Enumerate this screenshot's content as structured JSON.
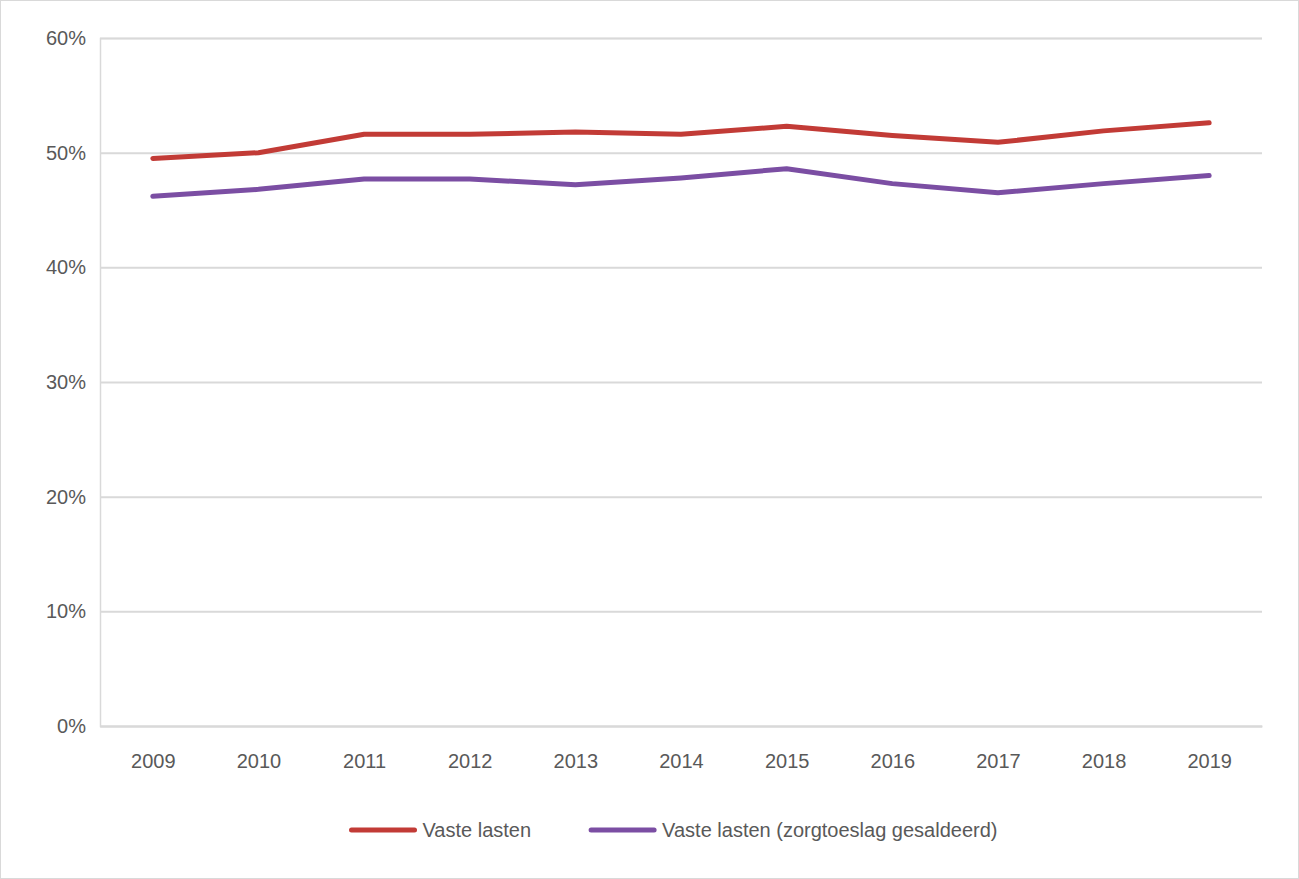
{
  "chart_data": {
    "type": "line",
    "categories": [
      "2009",
      "2010",
      "2011",
      "2012",
      "2013",
      "2014",
      "2015",
      "2016",
      "2017",
      "2018",
      "2019"
    ],
    "series": [
      {
        "name": "Vaste lasten",
        "color": "#c23b36",
        "values": [
          49.5,
          50.0,
          51.6,
          51.6,
          51.8,
          51.6,
          52.3,
          51.5,
          50.9,
          51.9,
          52.6
        ]
      },
      {
        "name": "Vaste lasten (zorgtoeslag gesaldeerd)",
        "color": "#7b4ea3",
        "values": [
          46.2,
          46.8,
          47.7,
          47.7,
          47.2,
          47.8,
          48.6,
          47.3,
          46.5,
          47.3,
          48.0
        ]
      }
    ],
    "ylim": [
      0,
      60
    ],
    "yticks": [
      {
        "value": 0,
        "label": "0%"
      },
      {
        "value": 10,
        "label": "10%"
      },
      {
        "value": 20,
        "label": "20%"
      },
      {
        "value": 30,
        "label": "30%"
      },
      {
        "value": 40,
        "label": "40%"
      },
      {
        "value": 50,
        "label": "50%"
      },
      {
        "value": 60,
        "label": "60%"
      }
    ],
    "grid": true,
    "legend": "bottom"
  }
}
